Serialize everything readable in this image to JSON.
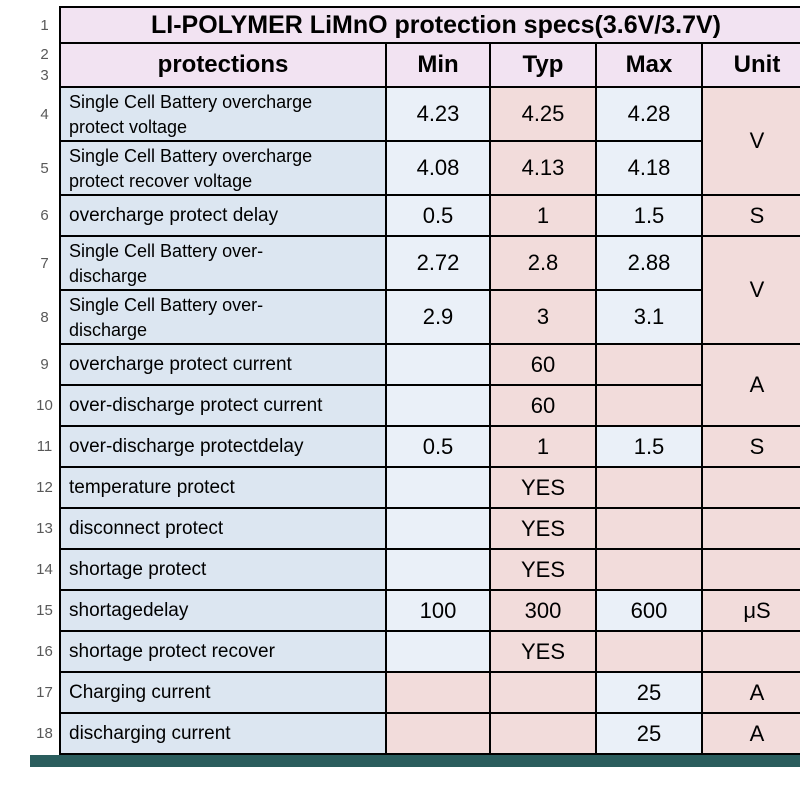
{
  "title": "LI-POLYMER LiMnO protection specs(3.6V/3.7V)",
  "gutter": {
    "row1": "1",
    "row2": "2",
    "row3": "3"
  },
  "header": {
    "protections": "protections",
    "min": "Min",
    "typ": "Typ",
    "max": "Max",
    "unit": "Unit"
  },
  "colors": {
    "title_header_bg": "#f2e3f2",
    "protection_col_bg": "#dce6f1",
    "value_blue_bg": "#eaf0f8",
    "value_pink_bg": "#f2dcdb",
    "gridline": "#000000",
    "row_number_text": "#595959",
    "bottom_strip": "#2a5d5d"
  },
  "rows": [
    {
      "num": "4",
      "label1": "Single Cell Battery overcharge",
      "label2": "protect voltage",
      "min": "4.23",
      "typ": "4.25",
      "max": "4.28",
      "unit": "V",
      "unit_rowspan": 2,
      "tall": true
    },
    {
      "num": "5",
      "label1": "Single Cell Battery overcharge",
      "label2": "protect recover voltage",
      "min": "4.08",
      "typ": "4.13",
      "max": "4.18",
      "tall": true
    },
    {
      "num": "6",
      "label": "overcharge protect delay",
      "min": "0.5",
      "typ": "1",
      "max": "1.5",
      "unit": "S"
    },
    {
      "num": "7",
      "label1": "Single Cell Battery over-",
      "label2": "discharge",
      "min": "2.72",
      "typ": "2.8",
      "max": "2.88",
      "unit": "V",
      "unit_rowspan": 2,
      "tall": true
    },
    {
      "num": "8",
      "label1": "Single Cell Battery over-",
      "label2": "discharge",
      "min": "2.9",
      "typ": "3",
      "max": "3.1",
      "tall": true
    },
    {
      "num": "9",
      "label": "overcharge protect current",
      "min": "",
      "typ": "60",
      "max": "",
      "max_bg": "pink",
      "unit": "A",
      "unit_rowspan": 2
    },
    {
      "num": "10",
      "label": "over-discharge protect current",
      "min": "",
      "typ": "60",
      "max": "",
      "max_bg": "pink"
    },
    {
      "num": "11",
      "label": "over-discharge protectdelay",
      "min": "0.5",
      "typ": "1",
      "max": "1.5",
      "unit": "S"
    },
    {
      "num": "12",
      "label": "temperature protect",
      "min": "",
      "typ": "YES",
      "max": "",
      "max_bg": "pink",
      "unit": ""
    },
    {
      "num": "13",
      "label": "disconnect protect",
      "min": "",
      "typ": "YES",
      "max": "",
      "max_bg": "pink",
      "unit": ""
    },
    {
      "num": "14",
      "label": "shortage protect",
      "min": "",
      "typ": "YES",
      "max": "",
      "max_bg": "pink",
      "unit": ""
    },
    {
      "num": "15",
      "label": "shortagedelay",
      "min": "100",
      "typ": "300",
      "max": "600",
      "unit": "μS"
    },
    {
      "num": "16",
      "label": "shortage protect recover",
      "min": "",
      "typ": "YES",
      "max": "",
      "max_bg": "pink",
      "unit": ""
    },
    {
      "num": "17",
      "label": "Charging current",
      "min": "",
      "min_bg": "pink",
      "typ": "",
      "max": "25",
      "unit": "A"
    },
    {
      "num": "18",
      "label": "discharging current",
      "min": "",
      "min_bg": "pink",
      "typ": "",
      "max": "25",
      "unit": "A"
    }
  ]
}
